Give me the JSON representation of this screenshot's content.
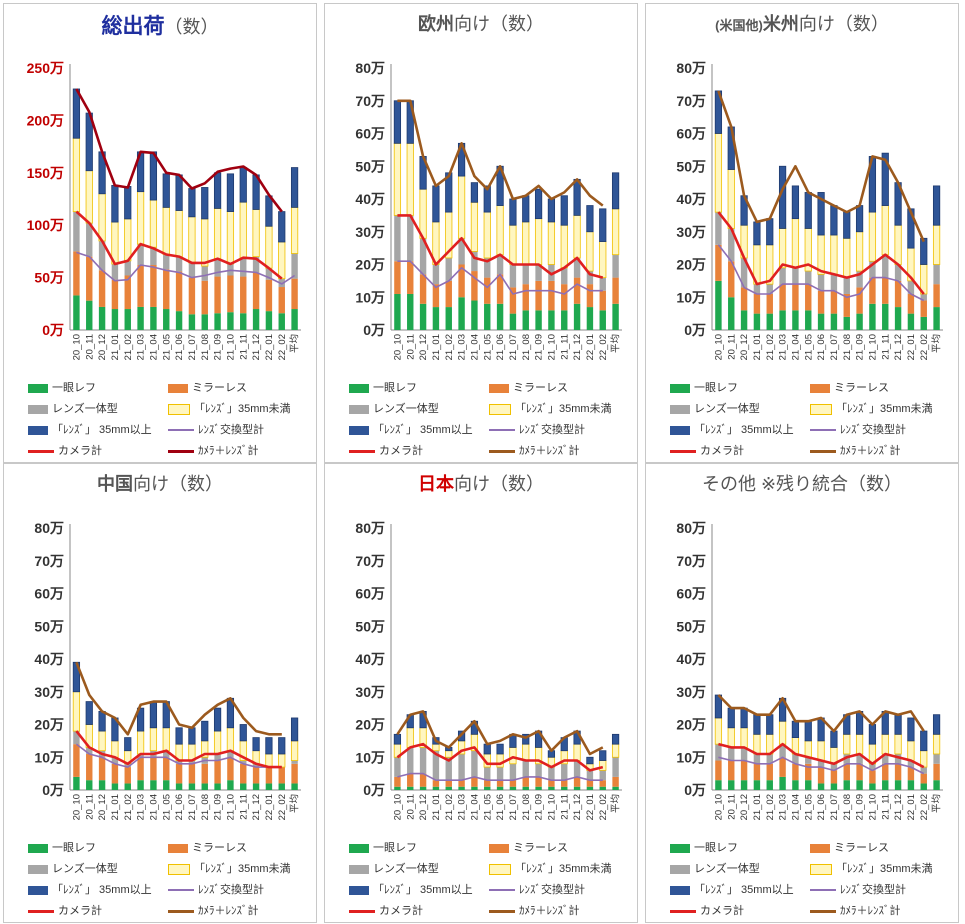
{
  "legend_labels": {
    "ichigan": "一眼レフ",
    "mirrorless": "ミラーレス",
    "lens_ittai": "レンズ一体型",
    "lens_small": "「ﾚﾝｽﾞ」35mm未満",
    "lens_large": "「ﾚﾝｽﾞ」 35mm以上",
    "lens_exchange_total": "ﾚﾝｽﾞ交換型計",
    "camera_total": "カメラ計",
    "camera_lens_total": "ｶﾒﾗ＋ﾚﾝｽﾞ計"
  },
  "colors": {
    "ichigan": "#1fa84f",
    "mirrorless": "#e8823a",
    "lens_ittai": "#a6a6a6",
    "lens_small": "#ffe680",
    "lens_large": "#2f5597",
    "lens_exchange_total": "#8e6fb5",
    "camera_total": "#e02020",
    "camera_lens_total_main": "#a00010",
    "camera_lens_total": "#9c5a1e"
  },
  "chart_data": [
    {
      "title_prefix": "",
      "title_highlight": "総出荷",
      "title_suffix": "（数）",
      "title_color": "#1f2f9f",
      "type": "bar",
      "y_unit": "万",
      "ylim": [
        0,
        250
      ],
      "yticks": [
        0,
        50,
        100,
        150,
        200,
        250
      ],
      "ytick_labels": [
        "0万",
        "50万",
        "100万",
        "150万",
        "200万",
        "250万"
      ],
      "ytick_color": "#c00000",
      "total_line_color": "#a00010",
      "categories": [
        "20_10",
        "20_11",
        "20_12",
        "21_01",
        "21_02",
        "21_03",
        "21_04",
        "21_05",
        "21_06",
        "21_07",
        "21_08",
        "21_09",
        "21_10",
        "21_11",
        "21_12",
        "22_01",
        "22_02",
        "平均"
      ],
      "series": {
        "ichigan": [
          33,
          28,
          22,
          20,
          20,
          22,
          22,
          20,
          18,
          15,
          15,
          16,
          17,
          16,
          20,
          18,
          16,
          20
        ],
        "mirrorless": [
          42,
          42,
          35,
          28,
          32,
          40,
          40,
          38,
          38,
          35,
          32,
          35,
          35,
          35,
          35,
          30,
          25,
          29
        ],
        "lens_ittai": [
          38,
          32,
          28,
          15,
          14,
          20,
          17,
          14,
          14,
          14,
          14,
          17,
          11,
          18,
          15,
          11,
          8,
          24
        ],
        "lens_small": [
          70,
          50,
          45,
          40,
          40,
          50,
          45,
          45,
          44,
          44,
          45,
          48,
          50,
          53,
          45,
          40,
          35,
          44
        ],
        "lens_large": [
          47,
          55,
          40,
          35,
          31,
          38,
          46,
          32,
          34,
          27,
          30,
          34,
          36,
          33,
          33,
          29,
          29,
          38
        ],
        "lens_exchange_total": [
          74,
          70,
          57,
          47,
          48,
          62,
          60,
          57,
          55,
          50,
          52,
          55,
          57,
          56,
          55,
          50,
          44,
          52
        ],
        "camera_total": [
          113,
          102,
          85,
          63,
          66,
          82,
          78,
          72,
          70,
          64,
          64,
          68,
          63,
          69,
          68,
          59,
          49,
          null
        ],
        "camera_lens_total": [
          230,
          208,
          170,
          138,
          136,
          170,
          169,
          150,
          148,
          135,
          140,
          151,
          154,
          156,
          148,
          129,
          113,
          null
        ]
      }
    },
    {
      "title_prefix": "",
      "title_highlight": "欧州",
      "title_suffix": "向け（数）",
      "title_color": "#555555",
      "type": "bar",
      "y_unit": "万",
      "ylim": [
        0,
        80
      ],
      "yticks": [
        0,
        10,
        20,
        30,
        40,
        50,
        60,
        70,
        80
      ],
      "ytick_labels": [
        "0万",
        "10万",
        "20万",
        "30万",
        "40万",
        "50万",
        "60万",
        "70万",
        "80万"
      ],
      "ytick_color": "#333333",
      "total_line_color": "#9c5a1e",
      "categories": [
        "20_10",
        "20_11",
        "20_12",
        "21_01",
        "21_02",
        "21_03",
        "21_04",
        "21_05",
        "21_06",
        "21_07",
        "21_08",
        "21_09",
        "21_10",
        "21_11",
        "21_12",
        "22_01",
        "22_02",
        "平均"
      ],
      "series": {
        "ichigan": [
          11,
          11,
          8,
          7,
          7,
          10,
          9,
          8,
          8,
          5,
          6,
          6,
          6,
          6,
          8,
          7,
          6,
          8
        ],
        "mirrorless": [
          10,
          10,
          9,
          7,
          8,
          10,
          9,
          8,
          9,
          8,
          8,
          9,
          9,
          8,
          8,
          7,
          6,
          8
        ],
        "lens_ittai": [
          14,
          14,
          11,
          6,
          7,
          8,
          6,
          6,
          6,
          7,
          6,
          5,
          5,
          5,
          6,
          4,
          4,
          7
        ],
        "lens_small": [
          22,
          22,
          15,
          13,
          14,
          19,
          15,
          14,
          15,
          12,
          13,
          14,
          13,
          13,
          13,
          12,
          11,
          14
        ],
        "lens_large": [
          13,
          13,
          10,
          11,
          12,
          10,
          6,
          8,
          12,
          8,
          8,
          9,
          7,
          9,
          11,
          8,
          10,
          11
        ],
        "lens_exchange_total": [
          21,
          21,
          17,
          13,
          15,
          19,
          16,
          13,
          17,
          11,
          12,
          12,
          12,
          11,
          14,
          12,
          12,
          null
        ],
        "camera_total": [
          35,
          35,
          28,
          20,
          24,
          28,
          22,
          21,
          23,
          20,
          20,
          20,
          17,
          19,
          22,
          17,
          16,
          null
        ],
        "camera_lens_total": [
          70,
          70,
          53,
          44,
          47,
          57,
          47,
          43,
          50,
          40,
          41,
          44,
          40,
          42,
          46,
          41,
          38,
          null
        ]
      }
    },
    {
      "title_prefix": "(米国他)",
      "title_highlight": "米州",
      "title_suffix": "向け（数）",
      "title_color": "#555555",
      "type": "bar",
      "y_unit": "万",
      "ylim": [
        0,
        80
      ],
      "yticks": [
        0,
        10,
        20,
        30,
        40,
        50,
        60,
        70,
        80
      ],
      "ytick_labels": [
        "0万",
        "10万",
        "20万",
        "30万",
        "40万",
        "50万",
        "60万",
        "70万",
        "80万"
      ],
      "ytick_color": "#333333",
      "total_line_color": "#9c5a1e",
      "categories": [
        "20_10",
        "20_11",
        "20_12",
        "21_01",
        "21_02",
        "21_03",
        "21_04",
        "21_05",
        "21_06",
        "21_07",
        "21_08",
        "21_09",
        "21_10",
        "21_11",
        "21_12",
        "22_01",
        "22_02",
        "平均"
      ],
      "series": {
        "ichigan": [
          15,
          10,
          6,
          5,
          5,
          6,
          6,
          6,
          5,
          5,
          4,
          5,
          8,
          8,
          7,
          5,
          4,
          7
        ],
        "mirrorless": [
          11,
          11,
          7,
          6,
          6,
          8,
          8,
          8,
          7,
          7,
          7,
          8,
          8,
          8,
          8,
          6,
          5,
          7
        ],
        "lens_ittai": [
          10,
          10,
          9,
          3,
          3,
          5,
          5,
          4,
          5,
          5,
          5,
          5,
          5,
          7,
          5,
          4,
          2,
          6
        ],
        "lens_small": [
          24,
          18,
          10,
          12,
          12,
          12,
          15,
          13,
          12,
          12,
          12,
          12,
          15,
          15,
          12,
          10,
          9,
          12
        ],
        "lens_large": [
          13,
          13,
          9,
          7,
          8,
          19,
          10,
          11,
          13,
          9,
          8,
          8,
          17,
          16,
          13,
          12,
          8,
          12
        ],
        "lens_exchange_total": [
          26,
          21,
          13,
          11,
          11,
          14,
          14,
          14,
          12,
          12,
          10,
          11,
          16,
          16,
          15,
          11,
          9,
          null
        ],
        "camera_total": [
          36,
          31,
          22,
          14,
          15,
          20,
          19,
          20,
          18,
          17,
          16,
          17,
          20,
          23,
          20,
          16,
          11,
          null
        ],
        "camera_lens_total": [
          73,
          62,
          41,
          33,
          34,
          43,
          50,
          42,
          40,
          38,
          36,
          38,
          53,
          52,
          45,
          36,
          27,
          null
        ]
      }
    },
    {
      "title_prefix": "",
      "title_highlight": "中国",
      "title_suffix": "向け（数）",
      "title_color": "#555555",
      "type": "bar",
      "y_unit": "万",
      "ylim": [
        0,
        80
      ],
      "yticks": [
        0,
        10,
        20,
        30,
        40,
        50,
        60,
        70,
        80
      ],
      "ytick_labels": [
        "0万",
        "10万",
        "20万",
        "30万",
        "40万",
        "50万",
        "60万",
        "70万",
        "80万"
      ],
      "ytick_color": "#333333",
      "total_line_color": "#9c5a1e",
      "categories": [
        "20_10",
        "20_11",
        "20_12",
        "21_01",
        "21_02",
        "21_03",
        "21_04",
        "21_05",
        "21_06",
        "21_07",
        "21_08",
        "21_09",
        "21_10",
        "21_11",
        "21_12",
        "22_01",
        "22_02",
        "平均"
      ],
      "series": {
        "ichigan": [
          4,
          3,
          3,
          2,
          2,
          3,
          3,
          3,
          2,
          2,
          2,
          2,
          3,
          2,
          2,
          2,
          2,
          2
        ],
        "mirrorless": [
          10,
          8,
          7,
          6,
          5,
          7,
          7,
          7,
          6,
          6,
          6,
          7,
          7,
          6,
          5,
          5,
          5,
          6
        ],
        "lens_ittai": [
          4,
          2,
          2,
          2,
          1,
          1,
          2,
          2,
          1,
          1,
          2,
          2,
          2,
          1,
          1,
          0,
          0,
          1
        ],
        "lens_small": [
          12,
          7,
          6,
          5,
          4,
          7,
          7,
          7,
          5,
          5,
          5,
          7,
          7,
          6,
          4,
          4,
          4,
          6
        ],
        "lens_large": [
          9,
          7,
          6,
          7,
          4,
          7,
          8,
          8,
          5,
          5,
          6,
          7,
          9,
          5,
          4,
          5,
          5,
          7
        ],
        "lens_exchange_total": [
          14,
          11,
          10,
          8,
          7,
          10,
          10,
          10,
          8,
          8,
          9,
          9,
          10,
          8,
          7,
          7,
          7,
          null
        ],
        "camera_total": [
          18,
          13,
          11,
          10,
          8,
          11,
          11,
          12,
          9,
          9,
          11,
          11,
          12,
          10,
          8,
          7,
          7,
          null
        ],
        "camera_lens_total": [
          39,
          29,
          24,
          22,
          17,
          26,
          27,
          27,
          20,
          19,
          23,
          26,
          28,
          22,
          18,
          17,
          17,
          null
        ]
      }
    },
    {
      "title_prefix": "",
      "title_highlight": "日本",
      "title_suffix": "向け（数）",
      "title_color": "#d00000",
      "type": "bar",
      "y_unit": "万",
      "ylim": [
        0,
        80
      ],
      "yticks": [
        0,
        10,
        20,
        30,
        40,
        50,
        60,
        70,
        80
      ],
      "ytick_labels": [
        "0万",
        "10万",
        "20万",
        "30万",
        "40万",
        "50万",
        "60万",
        "70万",
        "80万"
      ],
      "ytick_color": "#333333",
      "total_line_color": "#9c5a1e",
      "categories": [
        "20_10",
        "20_11",
        "20_12",
        "21_01",
        "21_02",
        "21_03",
        "21_04",
        "21_05",
        "21_06",
        "21_07",
        "21_08",
        "21_09",
        "21_10",
        "21_11",
        "21_12",
        "22_01",
        "22_02",
        "平均"
      ],
      "series": {
        "ichigan": [
          1,
          1,
          1,
          1,
          1,
          1,
          1,
          1,
          1,
          1,
          1,
          1,
          1,
          1,
          1,
          1,
          1,
          1
        ],
        "mirrorless": [
          3,
          4,
          4,
          2,
          2,
          2,
          3,
          2,
          2,
          2,
          3,
          3,
          2,
          2,
          3,
          2,
          2,
          3
        ],
        "lens_ittai": [
          6,
          8,
          8,
          9,
          7,
          8,
          8,
          4,
          4,
          5,
          5,
          4,
          4,
          5,
          5,
          3,
          3,
          6
        ],
        "lens_small": [
          4,
          6,
          6,
          2,
          2,
          4,
          5,
          4,
          4,
          5,
          5,
          5,
          3,
          4,
          5,
          2,
          3,
          4
        ],
        "lens_large": [
          3,
          4,
          5,
          2,
          1,
          3,
          4,
          3,
          3,
          4,
          3,
          5,
          2,
          4,
          4,
          2,
          3,
          3
        ],
        "lens_exchange_total": [
          4,
          5,
          5,
          3,
          3,
          3,
          4,
          3,
          3,
          3,
          4,
          4,
          3,
          3,
          4,
          3,
          3,
          null
        ],
        "camera_total": [
          10,
          13,
          14,
          11,
          9,
          12,
          13,
          8,
          8,
          10,
          9,
          9,
          7,
          9,
          9,
          6,
          7,
          null
        ],
        "camera_lens_total": [
          17,
          23,
          24,
          15,
          13,
          17,
          21,
          14,
          15,
          17,
          16,
          18,
          12,
          16,
          18,
          11,
          13,
          null
        ]
      }
    },
    {
      "title_prefix": "",
      "title_highlight": "",
      "title_suffix": "その他 ※残り統合（数）",
      "title_color": "#555555",
      "type": "bar",
      "y_unit": "万",
      "ylim": [
        0,
        80
      ],
      "yticks": [
        0,
        10,
        20,
        30,
        40,
        50,
        60,
        70,
        80
      ],
      "ytick_labels": [
        "0万",
        "10万",
        "20万",
        "30万",
        "40万",
        "50万",
        "60万",
        "70万",
        "80万"
      ],
      "ytick_color": "#333333",
      "total_line_color": "#9c5a1e",
      "categories": [
        "20_10",
        "20_11",
        "20_12",
        "21_01",
        "21_02",
        "21_03",
        "21_04",
        "21_05",
        "21_06",
        "21_07",
        "21_08",
        "21_09",
        "21_10",
        "21_11",
        "21_12",
        "22_01",
        "22_02",
        "平均"
      ],
      "series": {
        "ichigan": [
          3,
          3,
          3,
          3,
          3,
          4,
          3,
          3,
          2,
          2,
          3,
          3,
          2,
          3,
          3,
          3,
          2,
          3
        ],
        "mirrorless": [
          6,
          6,
          6,
          5,
          5,
          6,
          5,
          5,
          5,
          4,
          5,
          5,
          4,
          5,
          5,
          4,
          3,
          5
        ],
        "lens_ittai": [
          5,
          4,
          4,
          3,
          3,
          4,
          3,
          2,
          2,
          2,
          3,
          3,
          2,
          3,
          3,
          2,
          2,
          3
        ],
        "lens_small": [
          8,
          6,
          6,
          6,
          6,
          7,
          5,
          5,
          6,
          5,
          6,
          6,
          6,
          6,
          6,
          6,
          5,
          6
        ],
        "lens_large": [
          7,
          6,
          6,
          6,
          6,
          7,
          5,
          6,
          7,
          5,
          6,
          7,
          6,
          7,
          6,
          7,
          6,
          6
        ],
        "lens_exchange_total": [
          10,
          9,
          9,
          8,
          8,
          10,
          8,
          7,
          7,
          6,
          8,
          8,
          6,
          8,
          8,
          7,
          5,
          null
        ],
        "camera_total": [
          14,
          13,
          13,
          11,
          11,
          14,
          11,
          10,
          9,
          8,
          10,
          11,
          8,
          11,
          10,
          9,
          7,
          null
        ],
        "camera_lens_total": [
          29,
          25,
          25,
          23,
          23,
          28,
          21,
          21,
          22,
          18,
          23,
          24,
          20,
          24,
          23,
          24,
          18,
          null
        ]
      }
    }
  ]
}
